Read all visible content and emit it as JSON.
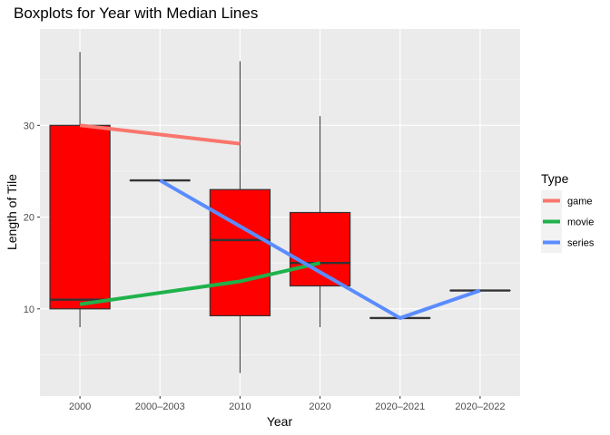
{
  "chart_data": {
    "type": "boxplot",
    "title": "Boxplots for Year with Median Lines",
    "xlabel": "Year",
    "ylabel": "Length of Tile",
    "categories": [
      "2000",
      "2000–2003",
      "2010",
      "2020",
      "2020–2021",
      "2020–2022"
    ],
    "ylim": [
      0.5,
      40.5
    ],
    "yticks": [
      10,
      20,
      30
    ],
    "grid": true,
    "legend_title": "Type",
    "legend_position": "right",
    "box_fill": "#ff0000",
    "boxes": [
      {
        "category": "2000",
        "min": 8,
        "q1": 10,
        "median": 11,
        "q3": 30,
        "max": 38
      },
      {
        "category": "2000–2003",
        "min": 24,
        "q1": 24,
        "median": 24,
        "q3": 24,
        "max": 24
      },
      {
        "category": "2010",
        "min": 3,
        "q1": 9.25,
        "median": 17.5,
        "q3": 23,
        "max": 37
      },
      {
        "category": "2020",
        "min": 8,
        "q1": 12.5,
        "median": 15,
        "q3": 20.5,
        "max": 31
      },
      {
        "category": "2020–2021",
        "min": 9,
        "q1": 9,
        "median": 9,
        "q3": 9,
        "max": 9
      },
      {
        "category": "2020–2022",
        "min": 12,
        "q1": 12,
        "median": 12,
        "q3": 12,
        "max": 12
      }
    ],
    "series": [
      {
        "name": "game",
        "color": "#f8766d",
        "x": [
          "2000",
          "2010"
        ],
        "values": [
          30,
          28
        ]
      },
      {
        "name": "movie",
        "color": "#1fb24a",
        "x": [
          "2000",
          "2010",
          "2020"
        ],
        "values": [
          10.5,
          13,
          15
        ]
      },
      {
        "name": "series",
        "color": "#5b8cff",
        "x": [
          "2000–2003",
          "2020–2021",
          "2020–2022"
        ],
        "values": [
          24,
          9,
          12
        ]
      }
    ]
  }
}
